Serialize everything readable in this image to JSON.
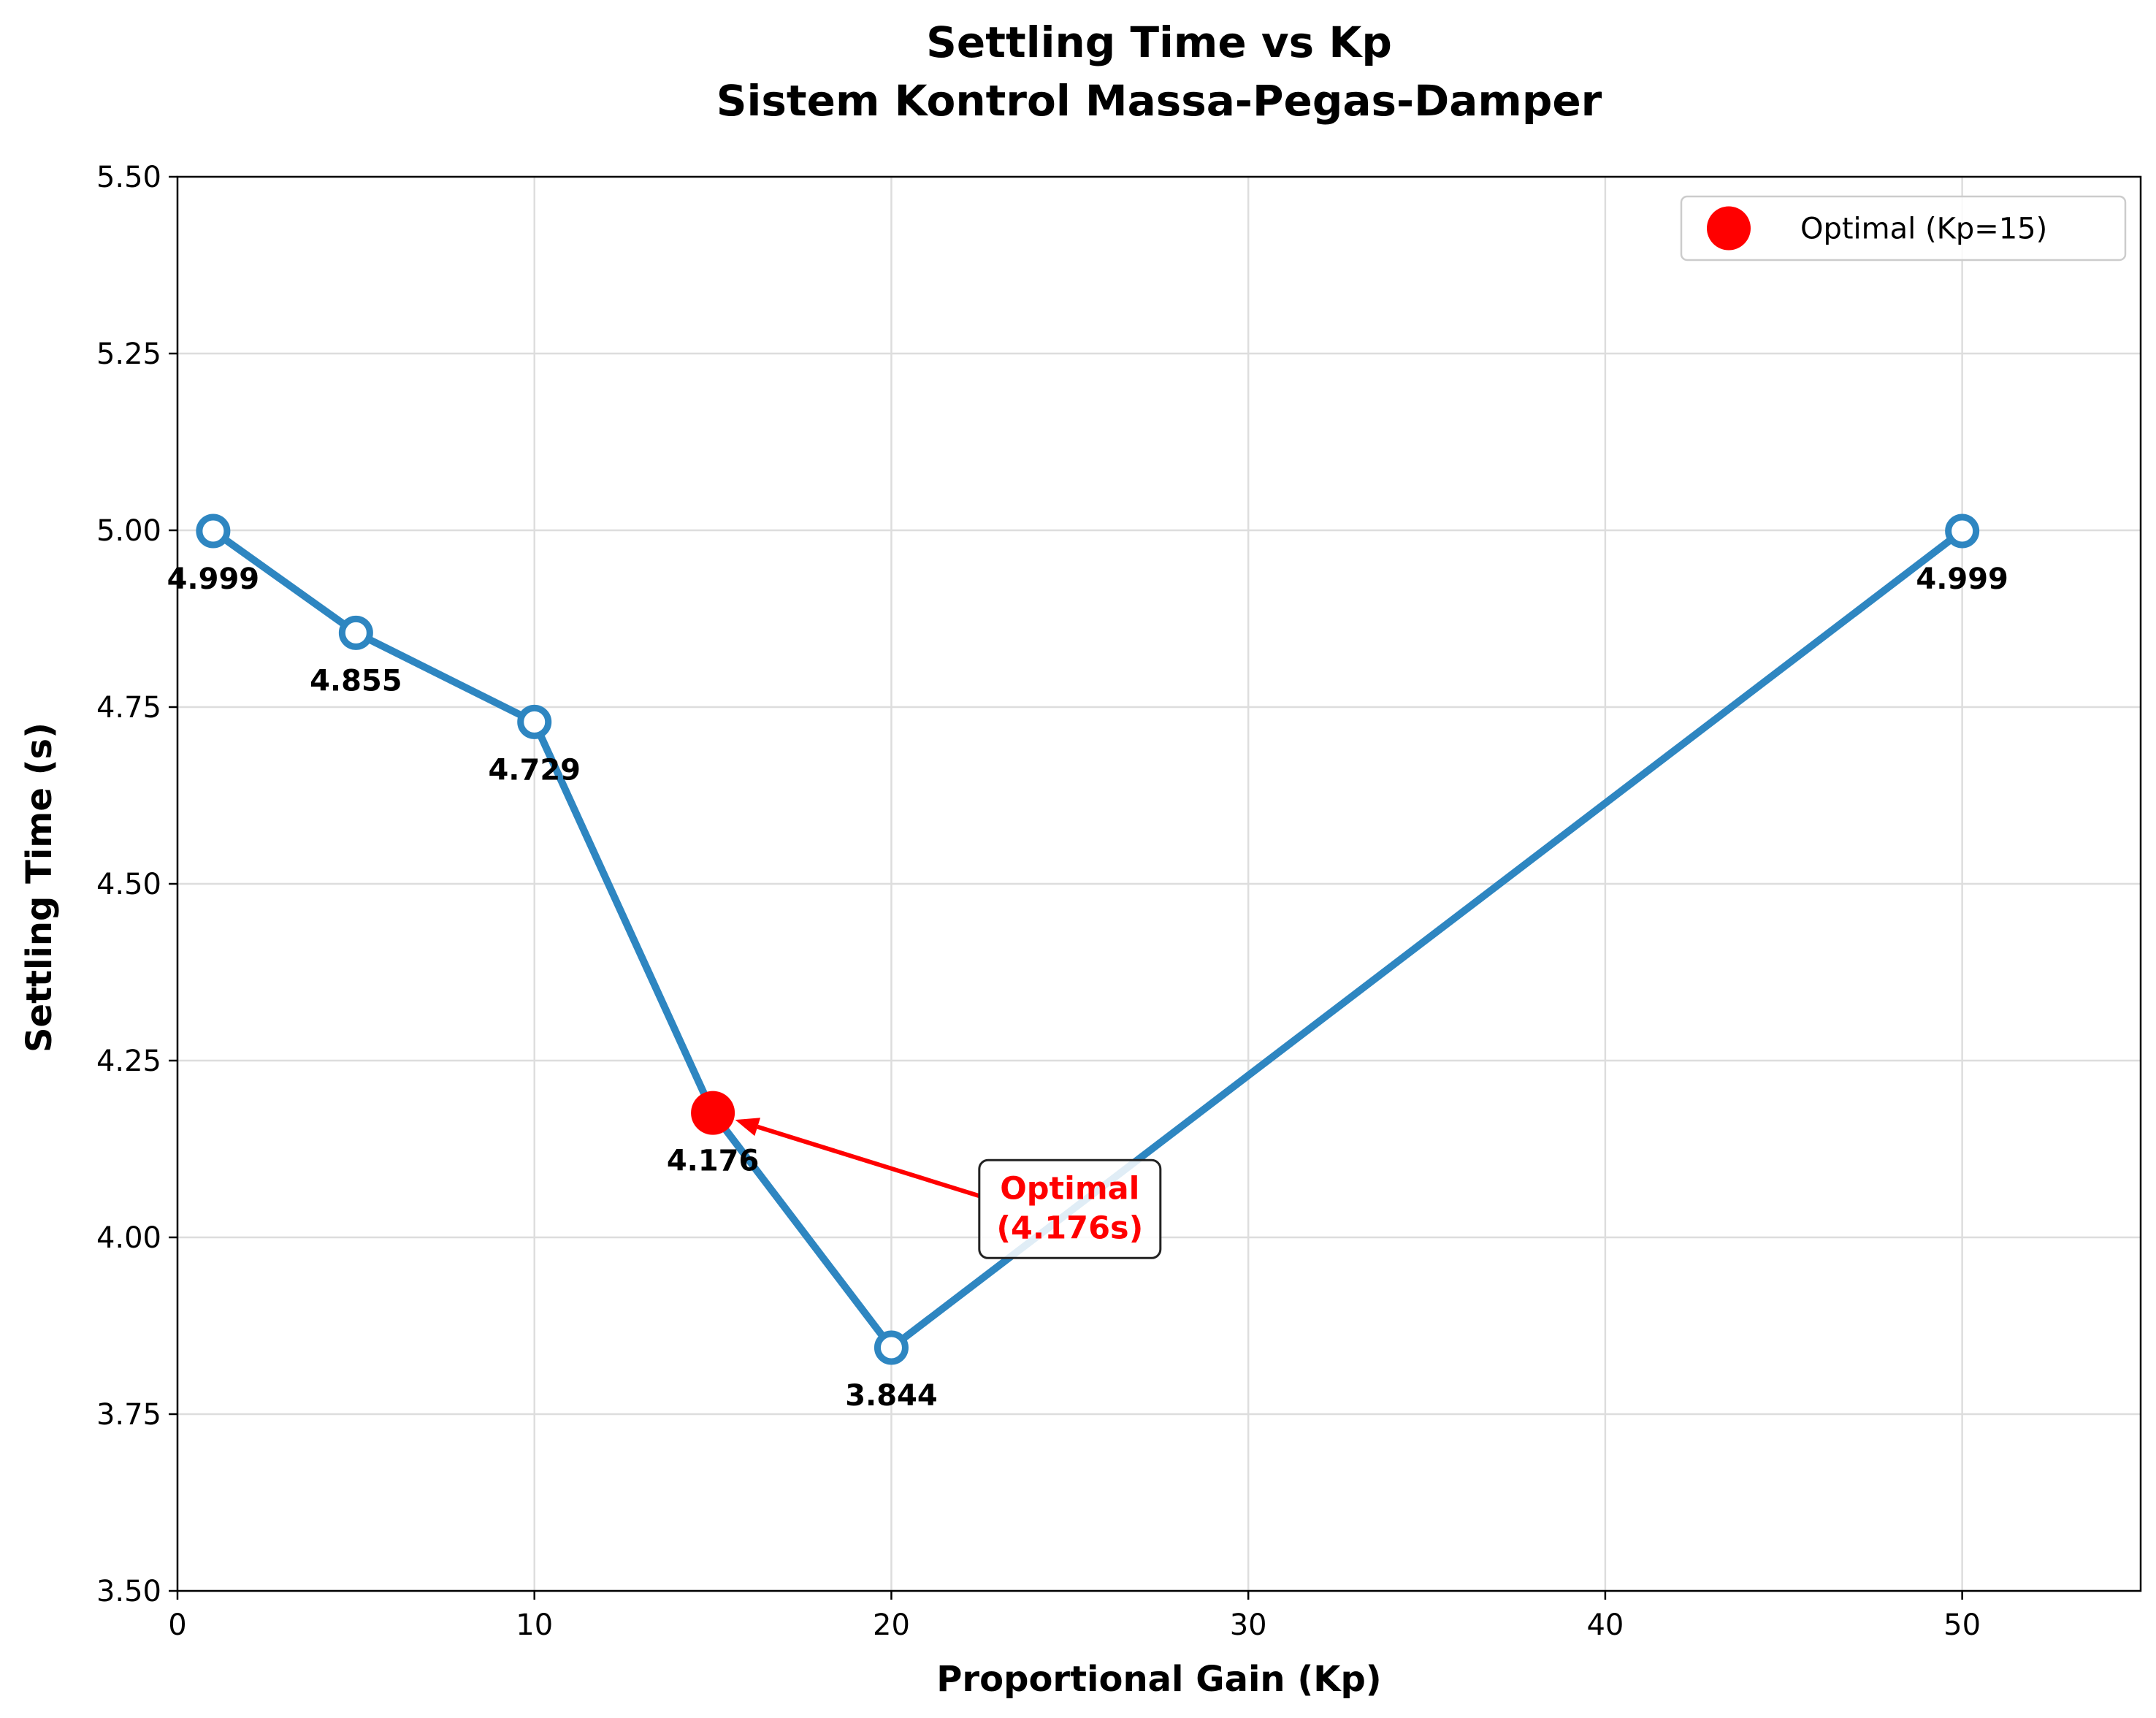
{
  "chart_data": {
    "type": "line",
    "title": "Settling Time vs Kp",
    "subtitle": "Sistem Kontrol Massa-Pegas-Damper",
    "xlabel": "Proportional Gain (Kp)",
    "ylabel": "Settling Time (s)",
    "xlim": [
      0,
      55
    ],
    "ylim": [
      3.5,
      5.5
    ],
    "xticks": [
      0,
      10,
      20,
      30,
      40,
      50
    ],
    "xtick_labels": [
      "0",
      "10",
      "20",
      "30",
      "40",
      "50"
    ],
    "yticks": [
      3.5,
      3.75,
      4.0,
      4.25,
      4.5,
      4.75,
      5.0,
      5.25,
      5.5
    ],
    "ytick_labels": [
      "3.50",
      "3.75",
      "4.00",
      "4.25",
      "4.50",
      "4.75",
      "5.00",
      "5.25",
      "5.50"
    ],
    "grid": true,
    "series": [
      {
        "x": [
          1,
          5,
          10,
          15,
          20,
          50
        ],
        "y": [
          4.999,
          4.855,
          4.729,
          4.176,
          3.844,
          4.999
        ],
        "labels": [
          "4.999",
          "4.855",
          "4.729",
          "4.176",
          "3.844",
          "4.999"
        ],
        "color": "#2e86c1"
      }
    ],
    "optimal": {
      "x": 15,
      "y": 4.176,
      "color": "#ff0000",
      "legend_label": "Optimal (Kp=15)",
      "annotation_lines": [
        "Optimal",
        "(4.176s)"
      ],
      "annotation_x": 25,
      "annotation_y": 4.04
    },
    "legend_position": "top-right"
  }
}
